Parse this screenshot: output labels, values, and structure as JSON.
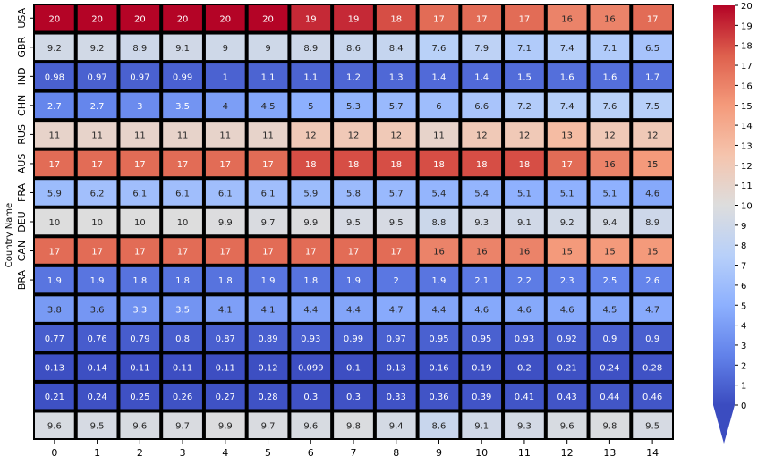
{
  "chart_data": {
    "type": "heatmap",
    "ylabel": "Country Name",
    "xlabel": "",
    "x": [
      "0",
      "1",
      "2",
      "3",
      "4",
      "5",
      "6",
      "7",
      "8",
      "9",
      "10",
      "11",
      "12",
      "13",
      "14"
    ],
    "y_tick_labels": [
      "USA",
      "GBR",
      "IND",
      "CHN",
      "RUS",
      "AUS",
      "FRA",
      "DEU",
      "CAN",
      "BRA",
      "",
      "",
      "",
      "",
      ""
    ],
    "colormap": "coolwarm",
    "colorbar": {
      "range": [
        0,
        20
      ],
      "ticks": [
        "0",
        "1",
        "2",
        "3",
        "4",
        "5",
        "6",
        "7",
        "8",
        "9",
        "10",
        "11",
        "12",
        "13",
        "14",
        "15",
        "16",
        "17",
        "18",
        "19",
        "20"
      ],
      "extend": "min"
    },
    "cell_border_color": "#000000",
    "values": [
      [
        20,
        20,
        20,
        20,
        20,
        20,
        19,
        19,
        18,
        17,
        17,
        17,
        16,
        16,
        17
      ],
      [
        9.2,
        9.2,
        8.9,
        9.1,
        9,
        9,
        8.9,
        8.6,
        8.4,
        7.6,
        7.9,
        7.1,
        7.4,
        7.1,
        6.5
      ],
      [
        0.98,
        0.97,
        0.97,
        0.99,
        1,
        1.1,
        1.1,
        1.2,
        1.3,
        1.4,
        1.4,
        1.5,
        1.6,
        1.6,
        1.7
      ],
      [
        2.7,
        2.7,
        3,
        3.5,
        4,
        4.5,
        5,
        5.3,
        5.7,
        6,
        6.6,
        7.2,
        7.4,
        7.6,
        7.5
      ],
      [
        11,
        11,
        11,
        11,
        11,
        11,
        12,
        12,
        12,
        11,
        12,
        12,
        13,
        12,
        12
      ],
      [
        17,
        17,
        17,
        17,
        17,
        17,
        18,
        18,
        18,
        18,
        18,
        18,
        17,
        16,
        15
      ],
      [
        5.9,
        6.2,
        6.1,
        6.1,
        6.1,
        6.1,
        5.9,
        5.8,
        5.7,
        5.4,
        5.4,
        5.1,
        5.1,
        5.1,
        4.6
      ],
      [
        10,
        10,
        10,
        10,
        9.9,
        9.7,
        9.9,
        9.5,
        9.5,
        8.8,
        9.3,
        9.1,
        9.2,
        9.4,
        8.9
      ],
      [
        17,
        17,
        17,
        17,
        17,
        17,
        17,
        17,
        17,
        16,
        16,
        16,
        15,
        15,
        15
      ],
      [
        1.9,
        1.9,
        1.8,
        1.8,
        1.8,
        1.9,
        1.8,
        1.9,
        2,
        1.9,
        2.1,
        2.2,
        2.3,
        2.5,
        2.6
      ],
      [
        3.8,
        3.6,
        3.3,
        3.5,
        4.1,
        4.1,
        4.4,
        4.4,
        4.7,
        4.4,
        4.6,
        4.6,
        4.6,
        4.5,
        4.7
      ],
      [
        0.77,
        0.76,
        0.79,
        0.8,
        0.87,
        0.89,
        0.93,
        0.99,
        0.97,
        0.95,
        0.95,
        0.93,
        0.92,
        0.9,
        0.9
      ],
      [
        0.13,
        0.14,
        0.11,
        0.11,
        0.11,
        0.12,
        0.099,
        0.1,
        0.13,
        0.16,
        0.19,
        0.2,
        0.21,
        0.24,
        0.28
      ],
      [
        0.21,
        0.24,
        0.25,
        0.26,
        0.27,
        0.28,
        0.3,
        0.3,
        0.33,
        0.36,
        0.39,
        0.41,
        0.43,
        0.44,
        0.46
      ],
      [
        9.6,
        9.5,
        9.6,
        9.7,
        9.9,
        9.7,
        9.6,
        9.8,
        9.4,
        8.6,
        9.1,
        9.3,
        9.6,
        9.8,
        9.5
      ]
    ]
  }
}
